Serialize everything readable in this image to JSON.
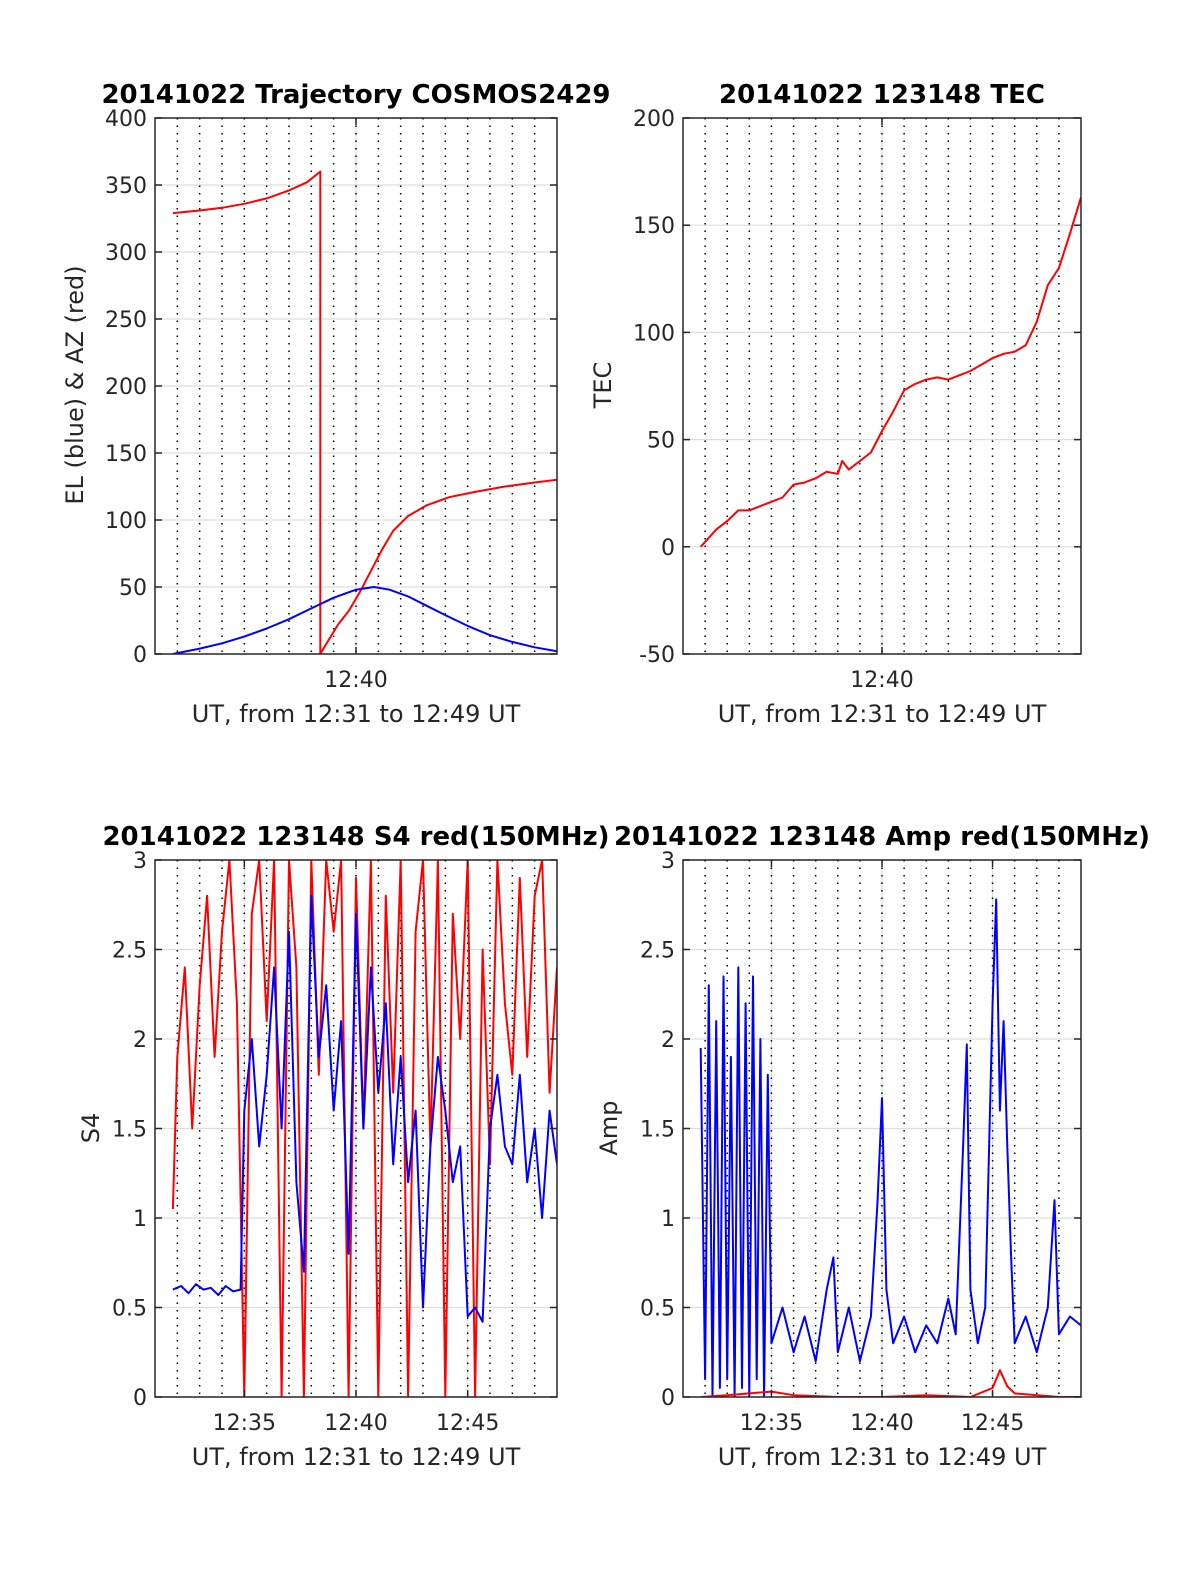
{
  "colors": {
    "red": "#ff0000",
    "blue": "#0000ff",
    "grid": "#dddddd",
    "dotted": "#000000",
    "axis": "#262626"
  },
  "chart_data": [
    {
      "id": "traj",
      "type": "line",
      "title": "20141022 Trajectory COSMOS2429",
      "xlabel": "UT, from 12:31 to 12:49 UT",
      "ylabel": "EL (blue) & AZ (red)",
      "xlim": [
        "12:31:00",
        "12:49:00"
      ],
      "ylim": [
        0,
        400
      ],
      "yticks": [
        0,
        50,
        100,
        150,
        200,
        250,
        300,
        350,
        400
      ],
      "ytick_labels": [
        "0",
        "50",
        "100",
        "150",
        "200",
        "250",
        "300",
        "350",
        "400"
      ],
      "xticks": [
        "12:40"
      ],
      "grid": true,
      "dotted_vlines": true,
      "series": [
        {
          "color": "red",
          "x": [
            "12:31:48",
            "12:33:00",
            "12:34:00",
            "12:35:00",
            "12:36:00",
            "12:37:00",
            "12:37:48",
            "12:38:24",
            "12:38:24",
            "12:38:50",
            "12:39:12",
            "12:39:40",
            "12:40:12",
            "12:40:40",
            "12:41:10",
            "12:41:40",
            "12:42:20",
            "12:43:10",
            "12:44:10",
            "12:45:20",
            "12:46:40",
            "12:48:00",
            "12:49:00"
          ],
          "y": [
            329,
            331,
            333,
            336,
            340,
            346,
            352,
            360,
            0,
            12,
            22,
            32,
            47,
            62,
            78,
            92,
            103,
            111,
            117,
            121,
            125,
            128,
            130
          ]
        },
        {
          "color": "blue",
          "x": [
            "12:31:48",
            "12:33:00",
            "12:34:00",
            "12:35:00",
            "12:36:00",
            "12:37:00",
            "12:38:00",
            "12:39:00",
            "12:40:00",
            "12:40:48",
            "12:41:30",
            "12:42:20",
            "12:43:10",
            "12:44:00",
            "12:45:00",
            "12:46:00",
            "12:47:00",
            "12:48:00",
            "12:49:00"
          ],
          "y": [
            0,
            4,
            8,
            13,
            19,
            26,
            34,
            42,
            48,
            50,
            48,
            43,
            36,
            29,
            21,
            14,
            9,
            5,
            2
          ]
        }
      ]
    },
    {
      "id": "tec",
      "type": "line",
      "title": "20141022 123148 TEC",
      "xlabel": "UT, from 12:31 to 12:49 UT",
      "ylabel": "TEC",
      "xlim": [
        "12:31:00",
        "12:49:00"
      ],
      "ylim": [
        -50,
        200
      ],
      "yticks": [
        -50,
        0,
        50,
        100,
        150,
        200
      ],
      "ytick_labels": [
        "-50",
        "0",
        "50",
        "100",
        "150",
        "200"
      ],
      "xticks": [
        "12:40"
      ],
      "grid": true,
      "dotted_vlines": true,
      "series": [
        {
          "color": "red",
          "x": [
            "12:31:48",
            "12:32:30",
            "12:33:00",
            "12:33:30",
            "12:34:00",
            "12:34:30",
            "12:35:00",
            "12:35:30",
            "12:36:00",
            "12:36:30",
            "12:37:00",
            "12:37:30",
            "12:38:00",
            "12:38:12",
            "12:38:30",
            "12:39:00",
            "12:39:30",
            "12:40:00",
            "12:40:30",
            "12:41:00",
            "12:41:30",
            "12:42:00",
            "12:42:30",
            "12:43:00",
            "12:43:30",
            "12:44:00",
            "12:44:30",
            "12:45:00",
            "12:45:30",
            "12:46:00",
            "12:46:30",
            "12:47:00",
            "12:47:30",
            "12:48:00",
            "12:48:30",
            "12:49:00"
          ],
          "y": [
            0,
            8,
            12,
            17,
            17,
            19,
            21,
            23,
            29,
            30,
            32,
            35,
            34,
            40,
            36,
            40,
            44,
            54,
            63,
            73,
            76,
            78,
            79,
            78,
            80,
            82,
            85,
            88,
            90,
            91,
            94,
            105,
            122,
            130,
            146,
            163
          ]
        }
      ]
    },
    {
      "id": "s4",
      "type": "line",
      "title": "20141022 123148 S4 red(150MHz)",
      "xlabel": "UT, from 12:31 to 12:49 UT",
      "ylabel": "S4",
      "xlim": [
        "12:31:00",
        "12:49:00"
      ],
      "ylim": [
        0,
        3
      ],
      "yticks": [
        0,
        0.5,
        1,
        1.5,
        2,
        2.5,
        3
      ],
      "ytick_labels": [
        "0",
        "0.5",
        "1",
        "1.5",
        "2",
        "2.5",
        "3"
      ],
      "xticks": [
        "12:35",
        "12:40",
        "12:45"
      ],
      "grid": true,
      "dotted_vlines": true,
      "series": [
        {
          "color": "red",
          "x": [
            "12:31:48",
            "12:32:00",
            "12:32:20",
            "12:32:40",
            "12:33:00",
            "12:33:20",
            "12:33:40",
            "12:34:00",
            "12:34:20",
            "12:34:40",
            "12:35:00",
            "12:35:20",
            "12:35:40",
            "12:36:00",
            "12:36:20",
            "12:36:40",
            "12:37:00",
            "12:37:20",
            "12:37:40",
            "12:38:00",
            "12:38:20",
            "12:38:40",
            "12:39:00",
            "12:39:20",
            "12:39:40",
            "12:40:00",
            "12:40:20",
            "12:40:40",
            "12:41:00",
            "12:41:20",
            "12:41:40",
            "12:42:00",
            "12:42:20",
            "12:42:40",
            "12:43:00",
            "12:43:20",
            "12:43:40",
            "12:44:00",
            "12:44:20",
            "12:44:40",
            "12:45:00",
            "12:45:20",
            "12:45:40",
            "12:46:00",
            "12:46:20",
            "12:46:40",
            "12:47:00",
            "12:47:20",
            "12:47:40",
            "12:48:00",
            "12:48:20",
            "12:48:40",
            "12:49:00"
          ],
          "y": [
            1.05,
            1.9,
            2.4,
            1.5,
            2.3,
            2.8,
            1.9,
            2.6,
            3.0,
            2.2,
            0.0,
            2.7,
            3.0,
            2.1,
            3.0,
            0.0,
            3.0,
            2.4,
            0.0,
            3.0,
            1.8,
            3.0,
            2.6,
            3.0,
            0.0,
            2.9,
            1.5,
            3.0,
            0.0,
            2.8,
            1.7,
            3.0,
            0.0,
            2.6,
            3.0,
            1.4,
            3.0,
            0.0,
            2.7,
            2.0,
            3.0,
            0.0,
            2.5,
            1.3,
            3.0,
            2.2,
            1.8,
            2.9,
            1.9,
            2.8,
            3.0,
            1.7,
            2.4
          ]
        },
        {
          "color": "blue",
          "x": [
            "12:31:48",
            "12:32:10",
            "12:32:30",
            "12:32:50",
            "12:33:10",
            "12:33:30",
            "12:33:50",
            "12:34:10",
            "12:34:30",
            "12:34:50",
            "12:35:00",
            "12:35:20",
            "12:35:40",
            "12:36:00",
            "12:36:20",
            "12:36:40",
            "12:37:00",
            "12:37:20",
            "12:37:40",
            "12:38:00",
            "12:38:20",
            "12:38:40",
            "12:39:00",
            "12:39:20",
            "12:39:40",
            "12:40:00",
            "12:40:20",
            "12:40:40",
            "12:41:00",
            "12:41:20",
            "12:41:40",
            "12:42:00",
            "12:42:20",
            "12:42:40",
            "12:43:00",
            "12:43:20",
            "12:43:40",
            "12:44:00",
            "12:44:20",
            "12:44:40",
            "12:45:00",
            "12:45:20",
            "12:45:40",
            "12:46:00",
            "12:46:20",
            "12:46:40",
            "12:47:00",
            "12:47:20",
            "12:47:40",
            "12:48:00",
            "12:48:20",
            "12:48:40",
            "12:49:00"
          ],
          "y": [
            0.6,
            0.62,
            0.58,
            0.63,
            0.6,
            0.61,
            0.57,
            0.62,
            0.59,
            0.6,
            1.6,
            2.0,
            1.4,
            1.8,
            2.4,
            1.5,
            2.6,
            1.2,
            0.7,
            2.8,
            1.9,
            2.3,
            1.6,
            2.1,
            0.8,
            2.7,
            1.5,
            2.4,
            1.7,
            2.2,
            1.3,
            1.9,
            1.2,
            1.6,
            0.5,
            1.4,
            1.9,
            1.6,
            1.2,
            1.4,
            0.45,
            0.5,
            0.42,
            1.5,
            1.8,
            1.4,
            1.3,
            1.8,
            1.2,
            1.5,
            1.0,
            1.6,
            1.3
          ]
        }
      ]
    },
    {
      "id": "amp",
      "type": "line",
      "title": "20141022 123148 Amp red(150MHz)",
      "xlabel": "UT, from 12:31 to 12:49 UT",
      "ylabel": "Amp",
      "xlim": [
        "12:31:00",
        "12:49:00"
      ],
      "ylim": [
        0,
        3
      ],
      "yticks": [
        0,
        0.5,
        1,
        1.5,
        2,
        2.5,
        3
      ],
      "ytick_labels": [
        "0",
        "0.5",
        "1",
        "1.5",
        "2",
        "2.5",
        "3"
      ],
      "xticks": [
        "12:35",
        "12:40",
        "12:45"
      ],
      "grid": true,
      "dotted_vlines": true,
      "series": [
        {
          "color": "blue",
          "x": [
            "12:31:48",
            "12:32:00",
            "12:32:10",
            "12:32:20",
            "12:32:30",
            "12:32:40",
            "12:32:50",
            "12:33:00",
            "12:33:10",
            "12:33:20",
            "12:33:30",
            "12:33:40",
            "12:33:50",
            "12:34:00",
            "12:34:10",
            "12:34:20",
            "12:34:30",
            "12:34:40",
            "12:34:50",
            "12:35:00",
            "12:35:30",
            "12:36:00",
            "12:36:30",
            "12:37:00",
            "12:37:30",
            "12:37:48",
            "12:38:00",
            "12:38:30",
            "12:39:00",
            "12:39:30",
            "12:39:48",
            "12:40:00",
            "12:40:12",
            "12:40:30",
            "12:41:00",
            "12:41:30",
            "12:42:00",
            "12:42:30",
            "12:43:00",
            "12:43:20",
            "12:43:40",
            "12:43:50",
            "12:44:00",
            "12:44:20",
            "12:44:40",
            "12:45:00",
            "12:45:10",
            "12:45:20",
            "12:45:30",
            "12:45:40",
            "12:45:50",
            "12:46:00",
            "12:46:30",
            "12:47:00",
            "12:47:30",
            "12:47:48",
            "12:48:00",
            "12:48:30",
            "12:49:00"
          ],
          "y": [
            1.95,
            0.1,
            2.3,
            0.0,
            2.1,
            0.05,
            2.35,
            0.1,
            1.9,
            0.0,
            2.4,
            0.05,
            2.2,
            0.0,
            2.35,
            0.1,
            2.0,
            0.0,
            1.8,
            0.3,
            0.5,
            0.25,
            0.45,
            0.2,
            0.6,
            0.78,
            0.25,
            0.5,
            0.2,
            0.45,
            1.1,
            1.67,
            0.6,
            0.3,
            0.45,
            0.25,
            0.4,
            0.3,
            0.55,
            0.35,
            1.4,
            1.97,
            0.6,
            0.3,
            0.5,
            2.2,
            2.78,
            1.6,
            2.1,
            1.4,
            0.8,
            0.3,
            0.45,
            0.25,
            0.5,
            1.1,
            0.35,
            0.45,
            0.4
          ]
        },
        {
          "color": "red",
          "x": [
            "12:31:48",
            "12:33:00",
            "12:34:00",
            "12:35:00",
            "12:36:00",
            "12:38:00",
            "12:40:00",
            "12:42:00",
            "12:44:00",
            "12:45:00",
            "12:45:20",
            "12:45:40",
            "12:46:00",
            "12:48:00",
            "12:49:00"
          ],
          "y": [
            0.0,
            0.01,
            0.02,
            0.03,
            0.01,
            0.0,
            0.0,
            0.01,
            0.0,
            0.05,
            0.15,
            0.06,
            0.02,
            0.0,
            0.0
          ]
        }
      ]
    }
  ]
}
